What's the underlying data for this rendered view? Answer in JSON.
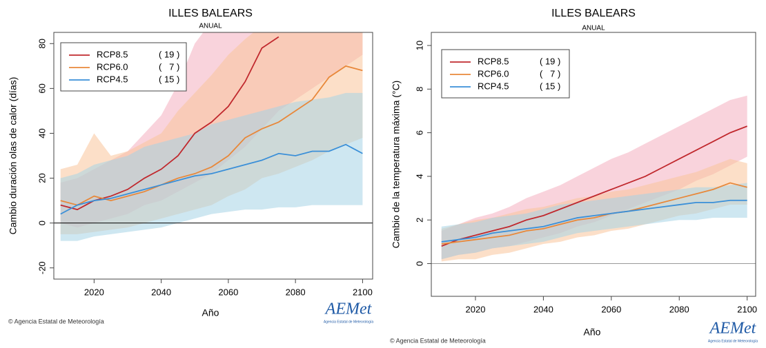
{
  "chart_data": [
    {
      "type": "line",
      "title": "ILLES BALEARS",
      "subtitle": "ANUAL",
      "xlabel": "Año",
      "ylabel": "Cambio duración olas de calor (días)",
      "x": [
        2010,
        2015,
        2020,
        2025,
        2030,
        2035,
        2040,
        2045,
        2050,
        2055,
        2060,
        2065,
        2070,
        2075,
        2080,
        2085,
        2090,
        2095,
        2100
      ],
      "series": [
        {
          "name": "RCP8.5",
          "models": "( 19 )",
          "color": "#c0282d",
          "band_color": "#f4aebf",
          "values": [
            8,
            6,
            10,
            12,
            15,
            20,
            24,
            30,
            40,
            45,
            52,
            63,
            78,
            83,
            null,
            null,
            null,
            null,
            null
          ],
          "low": [
            0,
            -2,
            0,
            2,
            4,
            8,
            10,
            14,
            18,
            22,
            28,
            34,
            42,
            50,
            55,
            60,
            65,
            70,
            75
          ],
          "high": [
            18,
            20,
            24,
            28,
            32,
            40,
            48,
            62,
            80,
            90,
            95,
            100,
            110,
            115,
            120,
            125,
            130,
            135,
            140
          ]
        },
        {
          "name": "RCP6.0",
          "models": "(   7 )",
          "color": "#e8883a",
          "band_color": "#f9c49a",
          "values": [
            10,
            8,
            12,
            10,
            12,
            14,
            17,
            20,
            22,
            25,
            30,
            38,
            42,
            45,
            50,
            55,
            65,
            70,
            68
          ],
          "low": [
            -5,
            -5,
            -4,
            -3,
            -2,
            0,
            2,
            4,
            6,
            8,
            12,
            15,
            20,
            22,
            25,
            28,
            32,
            35,
            38
          ],
          "high": [
            24,
            26,
            40,
            30,
            32,
            36,
            40,
            50,
            58,
            66,
            75,
            82,
            88,
            90,
            95,
            100,
            105,
            110,
            110
          ]
        },
        {
          "name": "RCP4.5",
          "models": "( 15 )",
          "color": "#3a8fd8",
          "band_color": "#a6d3e6",
          "values": [
            4,
            8,
            10,
            11,
            13,
            15,
            17,
            19,
            21,
            22,
            24,
            26,
            28,
            31,
            30,
            32,
            32,
            35,
            31
          ],
          "low": [
            -8,
            -8,
            -6,
            -5,
            -4,
            -3,
            -2,
            0,
            2,
            4,
            5,
            6,
            6,
            7,
            7,
            8,
            8,
            8,
            8
          ],
          "high": [
            20,
            22,
            26,
            28,
            30,
            34,
            36,
            38,
            40,
            44,
            46,
            48,
            50,
            52,
            54,
            55,
            56,
            58,
            58
          ]
        }
      ],
      "xlim": [
        2008,
        2103
      ],
      "ylim": [
        -25,
        85
      ],
      "xticks": [
        2020,
        2040,
        2060,
        2080,
        2100
      ],
      "yticks": [
        -20,
        0,
        20,
        40,
        60,
        80
      ],
      "zero_line_color": "#000000",
      "credit": "© Agencia Estatal de Meteorología",
      "logo": "AEMet",
      "logo_subtitle": "Agencia Estatal de Meteorología"
    },
    {
      "type": "line",
      "title": "ILLES BALEARS",
      "subtitle": "ANUAL",
      "xlabel": "Año",
      "ylabel": "Cambio  de la temperatura máxima (°C)",
      "x": [
        2010,
        2015,
        2020,
        2025,
        2030,
        2035,
        2040,
        2045,
        2050,
        2055,
        2060,
        2065,
        2070,
        2075,
        2080,
        2085,
        2090,
        2095,
        2100
      ],
      "series": [
        {
          "name": "RCP8.5",
          "models": "( 19 )",
          "color": "#c0282d",
          "band_color": "#f4aebf",
          "values": [
            0.8,
            1.1,
            1.3,
            1.5,
            1.7,
            2.0,
            2.2,
            2.5,
            2.8,
            3.1,
            3.4,
            3.7,
            4.0,
            4.4,
            4.8,
            5.2,
            5.6,
            6.0,
            6.3
          ],
          "low": [
            0.2,
            0.4,
            0.5,
            0.7,
            0.8,
            1.0,
            1.2,
            1.4,
            1.7,
            1.9,
            2.2,
            2.5,
            2.8,
            3.1,
            3.4,
            3.8,
            4.1,
            4.5,
            4.9
          ],
          "high": [
            1.5,
            1.8,
            2.1,
            2.3,
            2.6,
            3.0,
            3.3,
            3.6,
            4.0,
            4.4,
            4.8,
            5.1,
            5.5,
            5.9,
            6.3,
            6.7,
            7.1,
            7.5,
            7.7
          ]
        },
        {
          "name": "RCP6.0",
          "models": "(   7 )",
          "color": "#e8883a",
          "band_color": "#f9c49a",
          "values": [
            0.9,
            1.0,
            1.1,
            1.2,
            1.3,
            1.5,
            1.6,
            1.8,
            2.0,
            2.1,
            2.3,
            2.4,
            2.6,
            2.8,
            3.0,
            3.2,
            3.4,
            3.7,
            3.5
          ],
          "low": [
            0.1,
            0.2,
            0.2,
            0.4,
            0.5,
            0.7,
            0.9,
            1.0,
            1.2,
            1.3,
            1.5,
            1.6,
            1.8,
            2.0,
            2.2,
            2.3,
            2.5,
            2.7,
            2.7
          ],
          "high": [
            1.6,
            1.8,
            2.0,
            2.1,
            2.3,
            2.5,
            2.6,
            2.8,
            3.0,
            3.1,
            3.3,
            3.4,
            3.6,
            3.8,
            4.0,
            4.2,
            4.5,
            4.8,
            4.6
          ]
        },
        {
          "name": "RCP4.5",
          "models": "( 15 )",
          "color": "#3a8fd8",
          "band_color": "#a6d3e6",
          "values": [
            1.0,
            1.1,
            1.2,
            1.4,
            1.5,
            1.6,
            1.7,
            1.9,
            2.1,
            2.2,
            2.3,
            2.4,
            2.5,
            2.6,
            2.7,
            2.8,
            2.8,
            2.9,
            2.9
          ],
          "low": [
            0.2,
            0.4,
            0.5,
            0.7,
            0.8,
            0.9,
            1.0,
            1.2,
            1.4,
            1.5,
            1.6,
            1.7,
            1.8,
            1.9,
            2.0,
            2.0,
            2.1,
            2.1,
            2.1
          ],
          "high": [
            1.7,
            1.8,
            1.9,
            2.1,
            2.2,
            2.3,
            2.5,
            2.7,
            2.8,
            2.9,
            3.0,
            3.1,
            3.2,
            3.3,
            3.4,
            3.5,
            3.5,
            3.6,
            3.7
          ]
        }
      ],
      "xlim": [
        2007,
        2102.5
      ],
      "ylim": [
        -1.5,
        10.6
      ],
      "xticks": [
        2020,
        2040,
        2060,
        2080,
        2100
      ],
      "yticks": [
        0,
        2,
        4,
        6,
        8,
        10
      ],
      "zero_line_color": "#999999",
      "credit": "© Agencia Estatal de Meteorología",
      "logo": "AEMet",
      "logo_subtitle": "Agencia Estatal de Meteorología"
    }
  ]
}
